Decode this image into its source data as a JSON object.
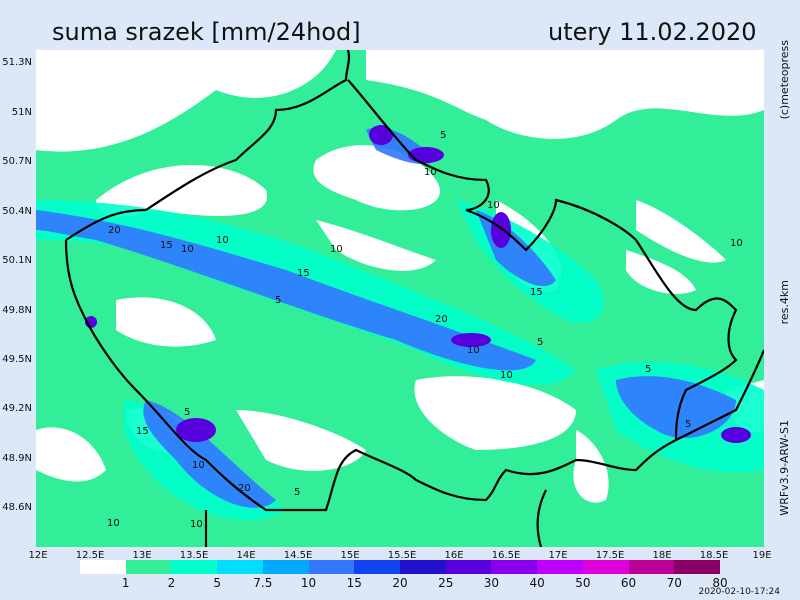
{
  "header": {
    "title": "suma srazek [mm/24hod]",
    "date": "utery 11.02.2020"
  },
  "side_labels": {
    "credit": "(c)meteopress",
    "resolution": "res.4km",
    "model": "WRFv3.9-ARW-S1"
  },
  "axes": {
    "latitudes": [
      "51.3N",
      "51N",
      "50.7N",
      "50.4N",
      "50.1N",
      "49.8N",
      "49.5N",
      "49.2N",
      "48.9N",
      "48.6N"
    ],
    "longitudes": [
      "12E",
      "12.5E",
      "13E",
      "13.5E",
      "14E",
      "14.5E",
      "15E",
      "15.5E",
      "16E",
      "16.5E",
      "17E",
      "17.5E",
      "18E",
      "18.5E",
      "19E"
    ]
  },
  "legend": {
    "labels": [
      "1",
      "2",
      "5",
      "7.5",
      "10",
      "15",
      "20",
      "25",
      "30",
      "40",
      "50",
      "60",
      "70",
      "80"
    ],
    "colors": [
      "#ffffff",
      "#33ee99",
      "#00ffcc",
      "#00ddff",
      "#00aaff",
      "#3377ff",
      "#1144ee",
      "#2211cc",
      "#5500dd",
      "#8800ee",
      "#bb00ff",
      "#dd00dd",
      "#bb0099",
      "#880066"
    ]
  },
  "contour_labels": [
    "5",
    "10",
    "10",
    "20",
    "15",
    "10",
    "10",
    "5",
    "15",
    "20",
    "10",
    "5",
    "10",
    "5",
    "15",
    "5",
    "10",
    "20",
    "5",
    "10",
    "10",
    "10",
    "15",
    "5",
    "10"
  ],
  "footer": {
    "timestamp": "2020-02-10-17:24"
  }
}
